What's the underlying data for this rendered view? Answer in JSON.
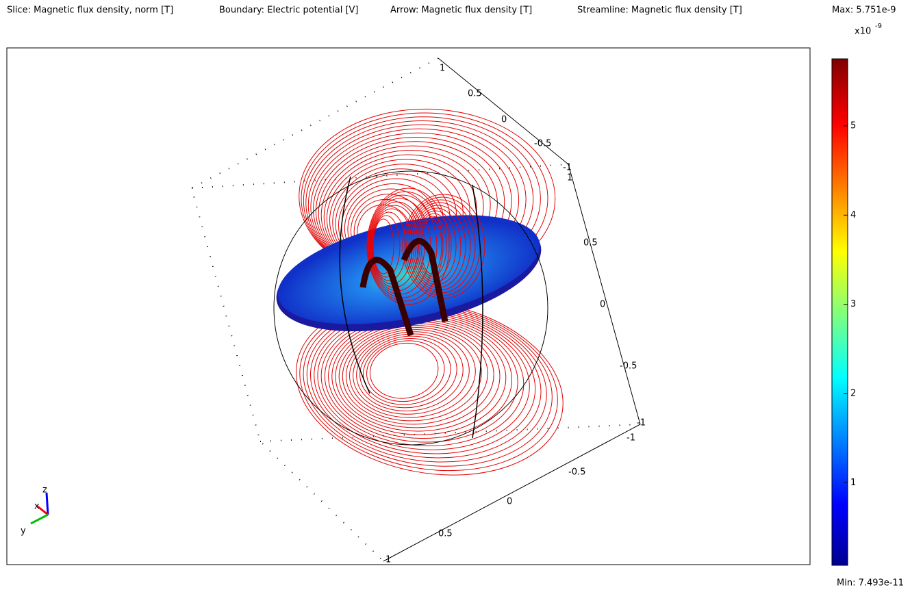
{
  "header": [
    "Slice: Magnetic flux density, norm [T]",
    "Boundary: Electric potential [V]",
    "Arrow: Magnetic flux density [T]",
    "Streamline: Magnetic flux density [T]"
  ],
  "colorbar": {
    "max": {
      "value": 5.751e-09,
      "label": "Max: 5.751e-9"
    },
    "min": {
      "value": 7.493e-11,
      "label": "Min: 7.493e-11"
    },
    "multiplier": "x10",
    "exponent": "-9",
    "ticks": [
      {
        "value": 1e-09,
        "label": "1"
      },
      {
        "value": 2e-09,
        "label": "2"
      },
      {
        "value": 3e-09,
        "label": "3"
      },
      {
        "value": 4e-09,
        "label": "4"
      },
      {
        "value": 5e-09,
        "label": "5"
      }
    ]
  },
  "axis_labels": {
    "top": [
      "1",
      "0.5",
      "0",
      "-0.5",
      "-1"
    ],
    "vertical": [
      "1",
      "0.5",
      "0",
      "-0.5",
      "-1"
    ],
    "bottom": [
      "-1",
      "-0.5",
      "0",
      "0.5",
      "1"
    ]
  },
  "triad": [
    "z",
    "x",
    "y"
  ]
}
